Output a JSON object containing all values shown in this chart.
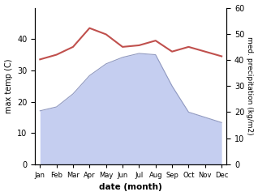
{
  "months": [
    "Jan",
    "Feb",
    "Mar",
    "Apr",
    "May",
    "Jun",
    "Jul",
    "Aug",
    "Sep",
    "Oct",
    "Nov",
    "Dec"
  ],
  "x": [
    0,
    1,
    2,
    3,
    4,
    5,
    6,
    7,
    8,
    9,
    10,
    11
  ],
  "temp": [
    33.5,
    35.0,
    37.5,
    43.5,
    41.5,
    37.5,
    38.0,
    39.5,
    36.0,
    37.5,
    36.0,
    34.5
  ],
  "precip": [
    20.5,
    22.0,
    27.0,
    34.0,
    38.5,
    41.0,
    42.5,
    42.0,
    30.0,
    20.0,
    18.0,
    16.0
  ],
  "temp_color": "#c0504d",
  "precip_fill_color": "#c5cef0",
  "precip_line_color": "#9099c0",
  "xlabel": "date (month)",
  "ylabel_left": "max temp (C)",
  "ylabel_right": "med. precipitation (kg/m2)",
  "ylim_left": [
    0,
    50
  ],
  "ylim_right": [
    0,
    60
  ],
  "yticks_left": [
    0,
    10,
    20,
    30,
    40
  ],
  "yticks_right": [
    0,
    10,
    20,
    30,
    40,
    50,
    60
  ]
}
